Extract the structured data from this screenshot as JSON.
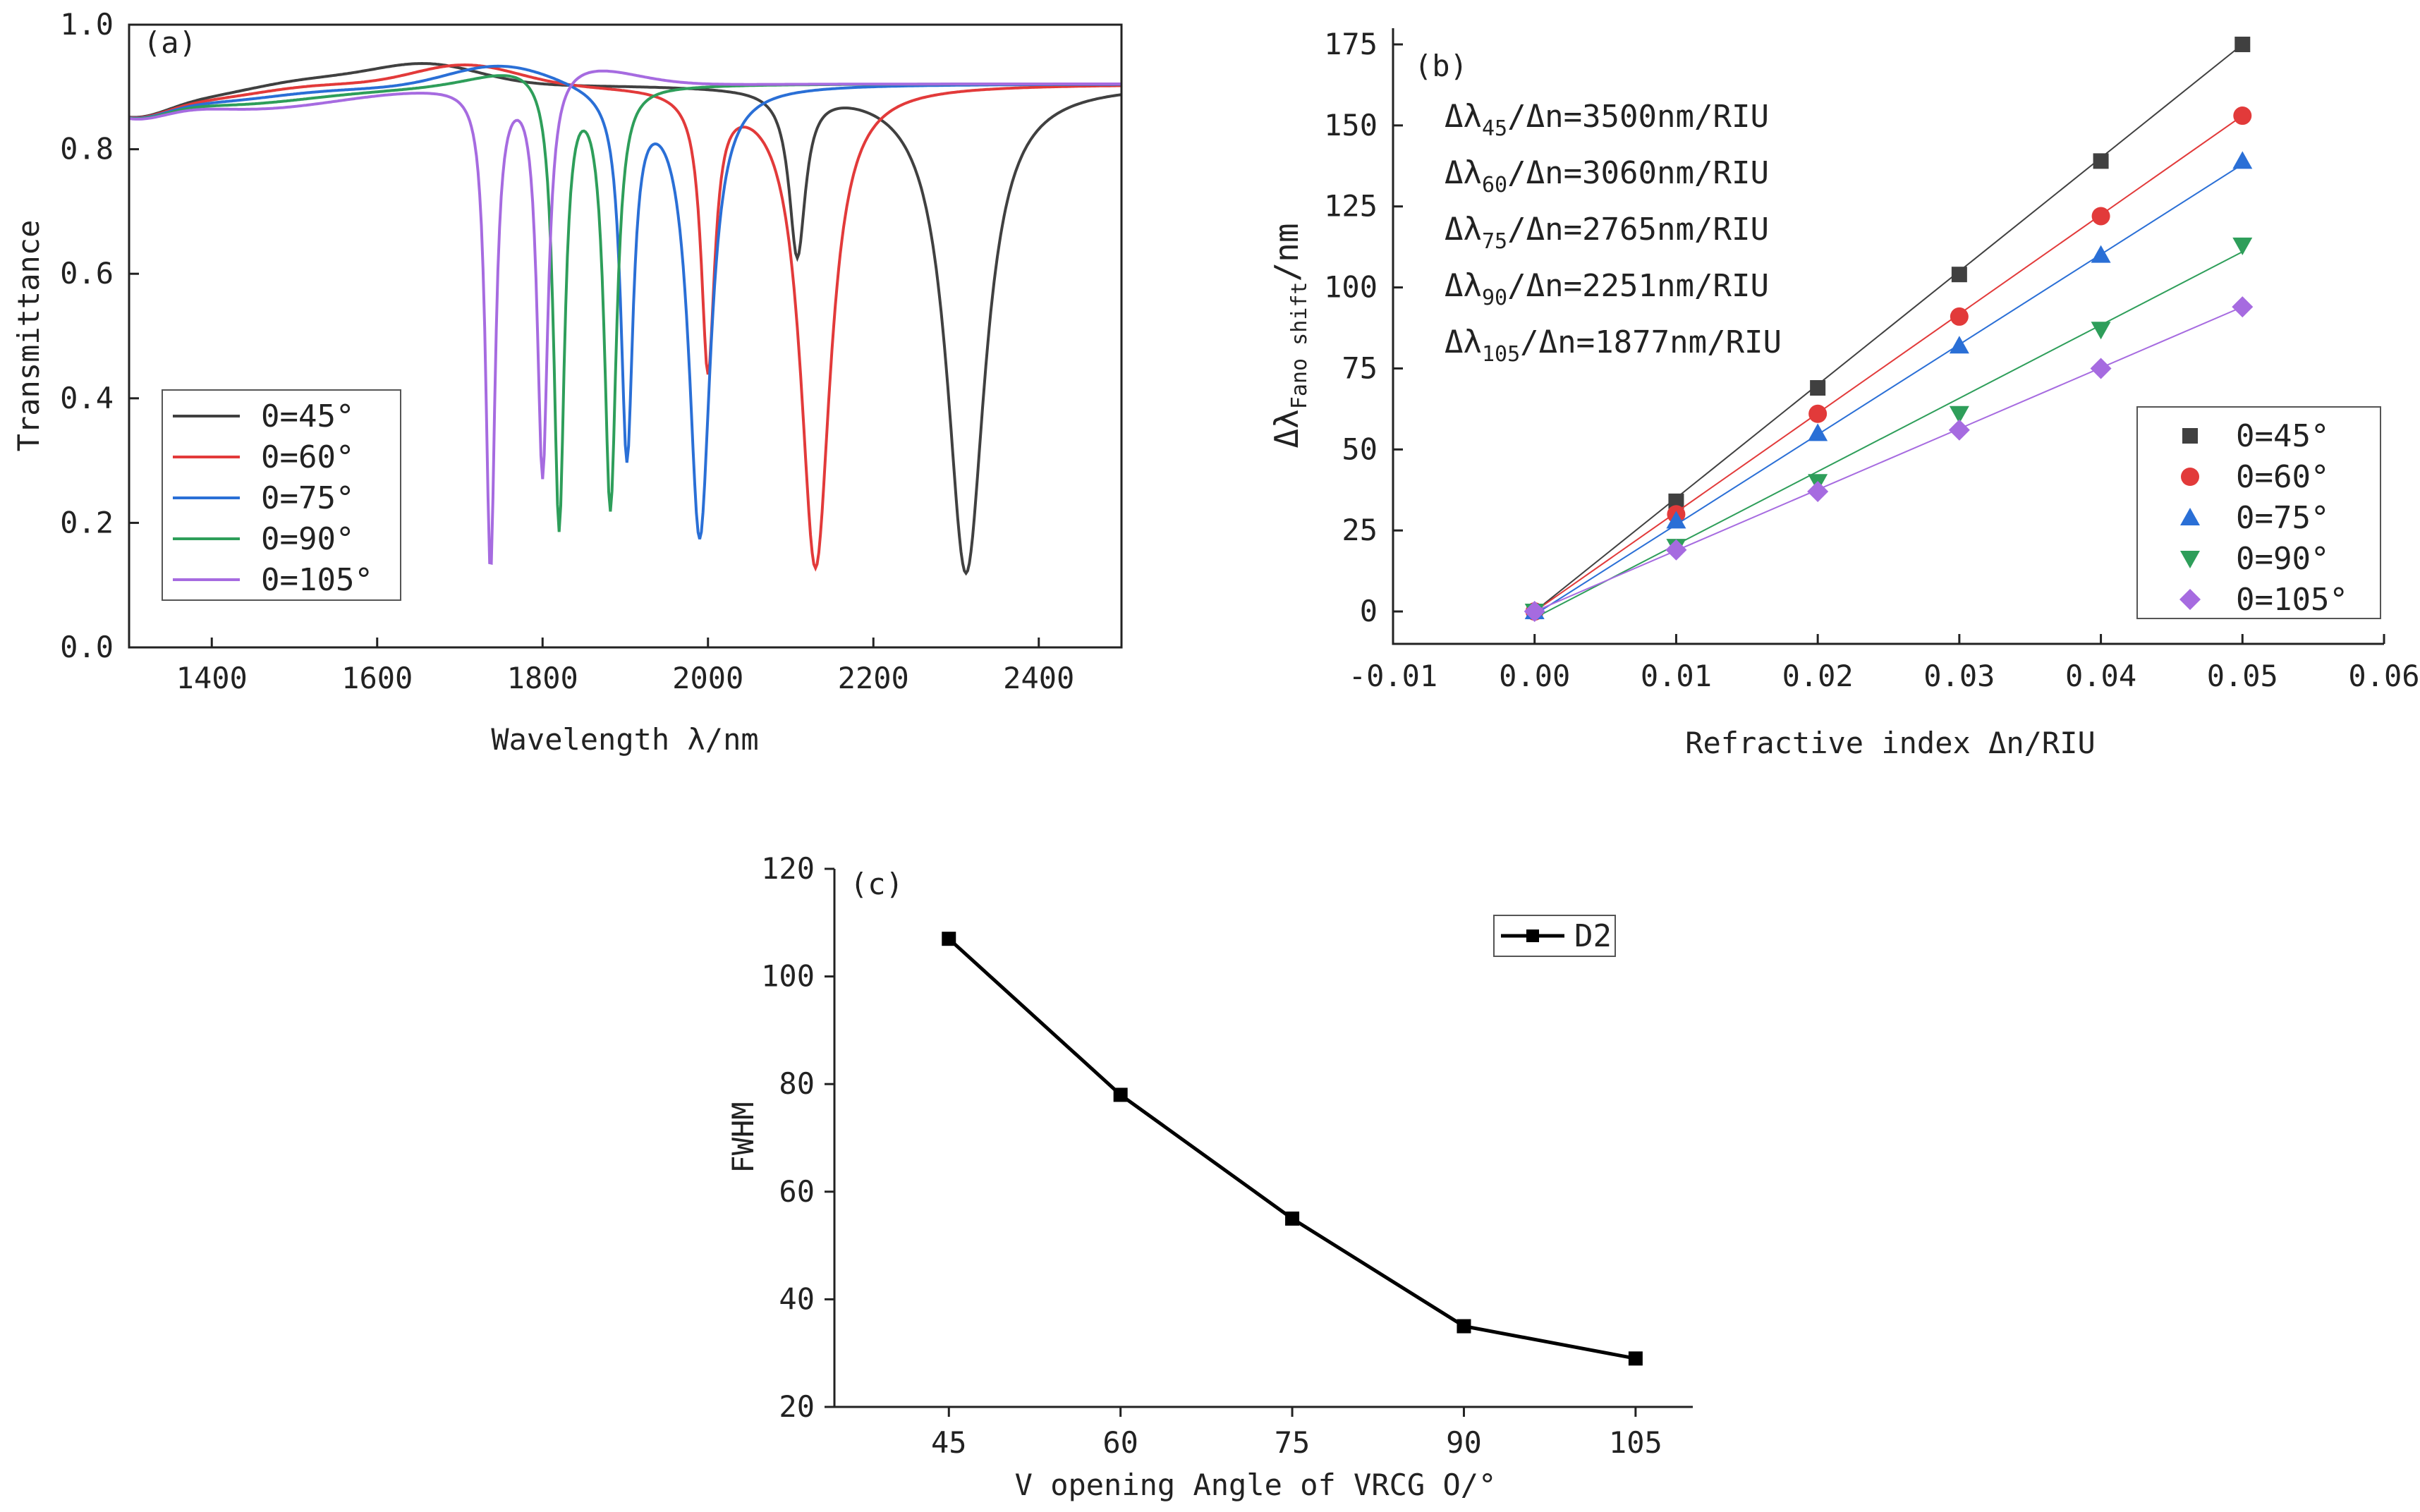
{
  "chart_data": [
    {
      "type": "line",
      "panel_label": "(a)",
      "xlabel": "Wavelength λ/nm",
      "ylabel": "Transmittance",
      "xlim": [
        1300,
        2500
      ],
      "ylim": [
        0.0,
        1.0
      ],
      "xticks": [
        "1400",
        "1600",
        "1800",
        "2000",
        "2200",
        "2400"
      ],
      "yticks": [
        "0.0",
        "0.2",
        "0.4",
        "0.6",
        "0.8",
        "1.0"
      ],
      "legend_position": "bottom-left",
      "series": [
        {
          "name": "0=45°",
          "color": "#404040",
          "dips": [
            [
              2108,
              0.64,
              12
            ],
            [
              2312,
              0.12,
              28
            ]
          ]
        },
        {
          "name": "0=60°",
          "color": "#e23a3a",
          "dips": [
            [
              2000,
              0.46,
              10
            ],
            [
              2130,
              0.13,
              22
            ]
          ]
        },
        {
          "name": "0=75°",
          "color": "#2a6fd6",
          "dips": [
            [
              1902,
              0.32,
              9
            ],
            [
              1990,
              0.18,
              16
            ]
          ]
        },
        {
          "name": "0=90°",
          "color": "#2e9e5a",
          "dips": [
            [
              1820,
              0.2,
              8
            ],
            [
              1882,
              0.23,
              9
            ]
          ]
        },
        {
          "name": "0=105°",
          "color": "#a66be0",
          "dips": [
            [
              1737,
              0.13,
              7
            ],
            [
              1800,
              0.28,
              8
            ]
          ]
        }
      ]
    },
    {
      "type": "scatter",
      "panel_label": "(b)",
      "xlabel": "Refractive index Δn/RIU",
      "ylabel_main": "Δλ",
      "ylabel_sub": "Fano shift",
      "ylabel_end": "/nm",
      "xlim": [
        -0.01,
        0.06
      ],
      "ylim": [
        -10,
        180
      ],
      "xticks": [
        "-0.01",
        "0.00",
        "0.01",
        "0.02",
        "0.03",
        "0.04",
        "0.05",
        "0.06"
      ],
      "yticks": [
        "0",
        "25",
        "50",
        "75",
        "100",
        "125",
        "150",
        "175"
      ],
      "x": [
        0.0,
        0.01,
        0.02,
        0.03,
        0.04,
        0.05
      ],
      "legend_position": "right",
      "annotations": [
        {
          "main": "Δλ",
          "sub": "45",
          "rest": "/Δn=3500nm/RIU"
        },
        {
          "main": "Δλ",
          "sub": "60",
          "rest": "/Δn=3060nm/RIU"
        },
        {
          "main": "Δλ",
          "sub": "75",
          "rest": "/Δn=2765nm/RIU"
        },
        {
          "main": "Δλ",
          "sub": "90",
          "rest": "/Δn=2251nm/RIU"
        },
        {
          "main": "Δλ",
          "sub": "105",
          "rest": "/Δn=1877nm/RIU"
        }
      ],
      "series": [
        {
          "name": "0=45°",
          "color": "#404040",
          "marker": "square",
          "values": [
            0,
            34,
            69,
            104,
            139,
            175
          ],
          "fit": [
            0,
            175
          ]
        },
        {
          "name": "0=60°",
          "color": "#e23a3a",
          "marker": "circle",
          "values": [
            0,
            30,
            61,
            91,
            122,
            153
          ],
          "fit": [
            0,
            153
          ]
        },
        {
          "name": "0=75°",
          "color": "#2a6fd6",
          "marker": "triangle-up",
          "values": [
            0,
            28,
            55,
            82,
            110,
            139
          ],
          "fit": [
            -1,
            138
          ]
        },
        {
          "name": "0=90°",
          "color": "#2e9e5a",
          "marker": "triangle-down",
          "values": [
            0,
            20,
            40,
            61,
            87,
            113
          ],
          "fit": [
            -2,
            111
          ]
        },
        {
          "name": "0=105°",
          "color": "#a66be0",
          "marker": "diamond",
          "values": [
            0,
            19,
            37,
            56,
            75,
            94
          ],
          "fit": [
            0,
            94
          ]
        }
      ]
    },
    {
      "type": "line",
      "panel_label": "(c)",
      "xlabel": "V opening Angle of VRCG O/°",
      "ylabel": "FWHM",
      "categories": [
        "45",
        "60",
        "75",
        "90",
        "105"
      ],
      "x": [
        45,
        60,
        75,
        90,
        105
      ],
      "xlim": [
        35,
        110
      ],
      "ylim": [
        20,
        120
      ],
      "yticks": [
        "20",
        "40",
        "60",
        "80",
        "100",
        "120"
      ],
      "legend_position": "top-right",
      "series": [
        {
          "name": "D2",
          "color": "#000000",
          "marker": "square",
          "values": [
            107,
            78,
            55,
            35,
            29
          ]
        }
      ]
    }
  ]
}
